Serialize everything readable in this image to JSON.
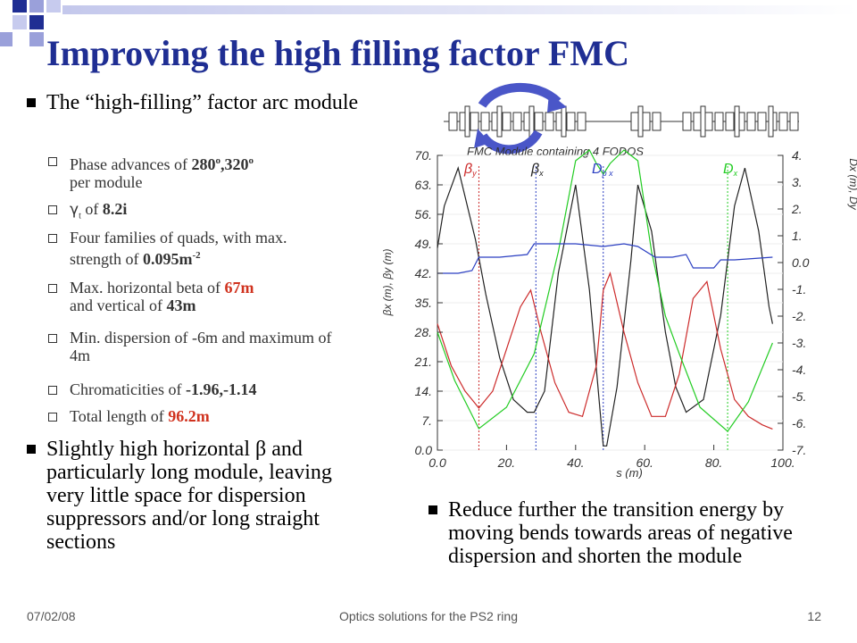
{
  "slide": {
    "title": "Improving the high filling factor FMC",
    "bullets": {
      "b1": "The “high-filling” factor arc module",
      "b2": "Slightly high horizontal β and particularly long module, leaving very little space for dispersion suppressors and/or long straight sections",
      "b3": "Reduce further the transition energy by moving bends towards areas of negative dispersion and shorten the module"
    },
    "sub": {
      "phase_pre": "Phase advances of ",
      "phase_val": "280",
      "phase_deg": "o",
      "phase_sep": ",320",
      "phase_deg2": "o",
      "phase_post": "per module",
      "gamma_sym": "γ",
      "gamma_sub": "t",
      "gamma_mid": " of ",
      "gamma_val": "8.2i",
      "quads_pre": "Four families of quads, with max. strength of ",
      "quads_val": "0.095m",
      "quads_exp": "-2",
      "beta_pre": "Max. horizontal beta of ",
      "beta_h": "67m",
      "beta_mid": "and vertical of ",
      "beta_v": "43m",
      "disp": "Min. dispersion of -6m and maximum of 4m",
      "chrom_pre": "Chromaticities of ",
      "chrom_val": "-1.96,-1.14",
      "len_pre": "Total length of ",
      "len_val": "96.2m"
    },
    "footer": {
      "date": "07/02/08",
      "center": "Optics solutions for the PS2 ring",
      "page": "12"
    },
    "colors": {
      "title": "#1f2e93",
      "accent": "#d0321e",
      "deco_dark": "#1f2e93",
      "deco_light": "#b9bde6"
    }
  },
  "chart_data": {
    "type": "line",
    "title": "FMC Module containing 4 FODOS",
    "xlabel": "s (m)",
    "ylabel_left": "βx (m), βy (m)",
    "ylabel_right": "Dx (m), Dy",
    "xlim": [
      0,
      100
    ],
    "ylim_left": [
      0,
      70
    ],
    "ylim_right": [
      -7,
      4
    ],
    "x_ticks": [
      "0.0",
      "20.",
      "40.",
      "60.",
      "80.",
      "100."
    ],
    "y_left_ticks": [
      "0.0",
      "7.",
      "14.",
      "21.",
      "28.",
      "35.",
      "42.",
      "49.",
      "56.",
      "63.",
      "70."
    ],
    "y_right_ticks": [
      "-7.",
      "-6.",
      "-5.",
      "-4.",
      "-3.",
      "-2.",
      "-1.",
      "0.0",
      "1.",
      "2.",
      "3.",
      "4."
    ],
    "legend": [
      {
        "label": "β",
        "sub": "y",
        "color": "#cc2a2a"
      },
      {
        "label": "β",
        "sub": "x",
        "color": "#222222"
      },
      {
        "label": "D",
        "sub": "p x",
        "color": "#2b3fc2"
      },
      {
        "label": "D",
        "sub": "x",
        "color": "#22cc22"
      }
    ],
    "series": [
      {
        "color": "#222222",
        "axis": "left",
        "x": [
          0,
          2,
          6,
          11,
          14,
          18,
          22,
          26,
          28,
          31,
          35,
          40,
          44,
          47,
          48,
          49,
          52,
          56,
          58,
          62,
          66,
          69,
          72,
          77,
          82,
          86,
          89,
          93,
          96,
          97
        ],
        "y": [
          48,
          58,
          67,
          50,
          37,
          22,
          12,
          9,
          9,
          14,
          42,
          63,
          38,
          10,
          1,
          1,
          15,
          45,
          63,
          52,
          28,
          15,
          9,
          12,
          32,
          58,
          67,
          52,
          34,
          30
        ]
      },
      {
        "color": "#cc2a2a",
        "axis": "left",
        "x": [
          0,
          4,
          8,
          10,
          12,
          16,
          20,
          24,
          27,
          30,
          34,
          38,
          42,
          46,
          48,
          50,
          54,
          58,
          62,
          66,
          70,
          74,
          78,
          82,
          86,
          90,
          94,
          97
        ],
        "y": [
          30,
          20,
          14,
          12,
          10,
          14,
          24,
          34,
          38,
          28,
          16,
          9,
          8,
          20,
          38,
          42,
          28,
          16,
          8,
          8,
          18,
          36,
          40,
          24,
          12,
          8,
          6,
          5
        ]
      },
      {
        "color": "#22cc22",
        "axis": "right",
        "x": [
          0,
          5,
          12,
          20,
          28,
          35,
          40,
          44,
          46,
          48,
          50,
          54,
          58,
          62,
          66,
          70,
          76,
          84,
          90,
          97
        ],
        "y": [
          -2.6,
          -4.4,
          -6.2,
          -5.4,
          -3.4,
          0.4,
          3.8,
          4.2,
          3.7,
          3.3,
          3.7,
          4.2,
          3.8,
          0.4,
          -2.0,
          -3.4,
          -5.4,
          -6.3,
          -5.2,
          -3.0
        ]
      },
      {
        "color": "#2b3fc2",
        "axis": "right",
        "x": [
          0,
          6,
          10,
          12,
          18,
          26,
          28,
          34,
          40,
          48,
          54,
          58,
          63,
          68,
          72,
          74,
          80,
          82,
          86,
          97
        ],
        "y": [
          -0.4,
          -0.4,
          -0.3,
          0.2,
          0.2,
          0.3,
          0.7,
          0.7,
          0.7,
          0.6,
          0.7,
          0.6,
          0.2,
          0.2,
          0.3,
          -0.2,
          -0.2,
          0.1,
          0.1,
          0.2
        ]
      }
    ],
    "markers": [
      {
        "x": 12,
        "color": "#cc2a2a"
      },
      {
        "x": 28.5,
        "color": "#2b3fc2"
      },
      {
        "x": 48,
        "color": "#2b3fc2"
      },
      {
        "x": 84,
        "color": "#22cc22"
      }
    ]
  }
}
